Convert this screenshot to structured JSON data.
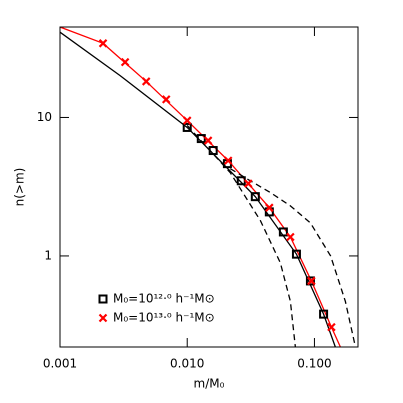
{
  "chart_data": {
    "type": "line",
    "log_x": true,
    "log_y": true,
    "xlabel": "m/M₀",
    "ylabel": "n(>m)",
    "xlim": [
      0.001,
      0.22
    ],
    "ylim": [
      0.22,
      45
    ],
    "xticks": [
      0.001,
      {
        "value": 0.01,
        "label": "0.010"
      },
      {
        "value": 0.1,
        "label": "0.100"
      }
    ],
    "yticks": [
      1,
      10
    ],
    "series": [
      {
        "color": "#000000",
        "marker": "none",
        "dash": false,
        "x": [
          0.001,
          0.00296,
          0.01,
          0.0343,
          0.0722,
          0.118,
          0.146
        ],
        "values": [
          41.3,
          20.1,
          8.47,
          2.68,
          1.03,
          0.38,
          0.22
        ]
      },
      {
        "color": "#ff0000",
        "marker": "none",
        "dash": false,
        "x": [
          0.001,
          0.00218,
          0.00476,
          0.01,
          0.021,
          0.0442,
          0.0647,
          0.0946,
          0.136,
          0.16
        ],
        "values": [
          45,
          34.3,
          18.2,
          9.5,
          4.88,
          2.23,
          1.37,
          0.66,
          0.306,
          0.22
        ]
      },
      {
        "color": "#000000",
        "marker": "none",
        "dash": true,
        "x": [
          0.01,
          0.0218,
          0.0376,
          0.054,
          0.0647,
          0.0708
        ],
        "values": [
          8.75,
          3.99,
          1.8,
          0.89,
          0.47,
          0.22
        ]
      },
      {
        "color": "#000000",
        "marker": "none",
        "dash": true,
        "x": [
          0.0218,
          0.0313,
          0.045,
          0.0647,
          0.093,
          0.134,
          0.175,
          0.21
        ],
        "values": [
          4.27,
          3.49,
          2.87,
          2.3,
          1.73,
          1.0,
          0.47,
          0.22
        ]
      },
      {
        "name": "M₀=10¹²·⁰ h⁻¹M⊙",
        "color": "#000000",
        "marker": "square",
        "x": [
          0.01,
          0.0129,
          0.016,
          0.0207,
          0.0266,
          0.0343,
          0.0442,
          0.057,
          0.0722,
          0.093,
          0.118
        ],
        "values": [
          8.47,
          7.04,
          5.77,
          4.64,
          3.49,
          2.68,
          2.08,
          1.49,
          1.03,
          0.66,
          0.38
        ]
      },
      {
        "name": "M₀=10¹³·⁰ h⁻¹M⊙",
        "color": "#ff0000",
        "marker": "x",
        "x": [
          0.00218,
          0.00325,
          0.00476,
          0.00684,
          0.01,
          0.0146,
          0.021,
          0.0302,
          0.0442,
          0.0647,
          0.0946,
          0.136
        ],
        "values": [
          34.3,
          25.1,
          18.2,
          13.5,
          9.5,
          6.81,
          4.88,
          3.33,
          2.23,
          1.37,
          0.66,
          0.306
        ]
      }
    ]
  }
}
